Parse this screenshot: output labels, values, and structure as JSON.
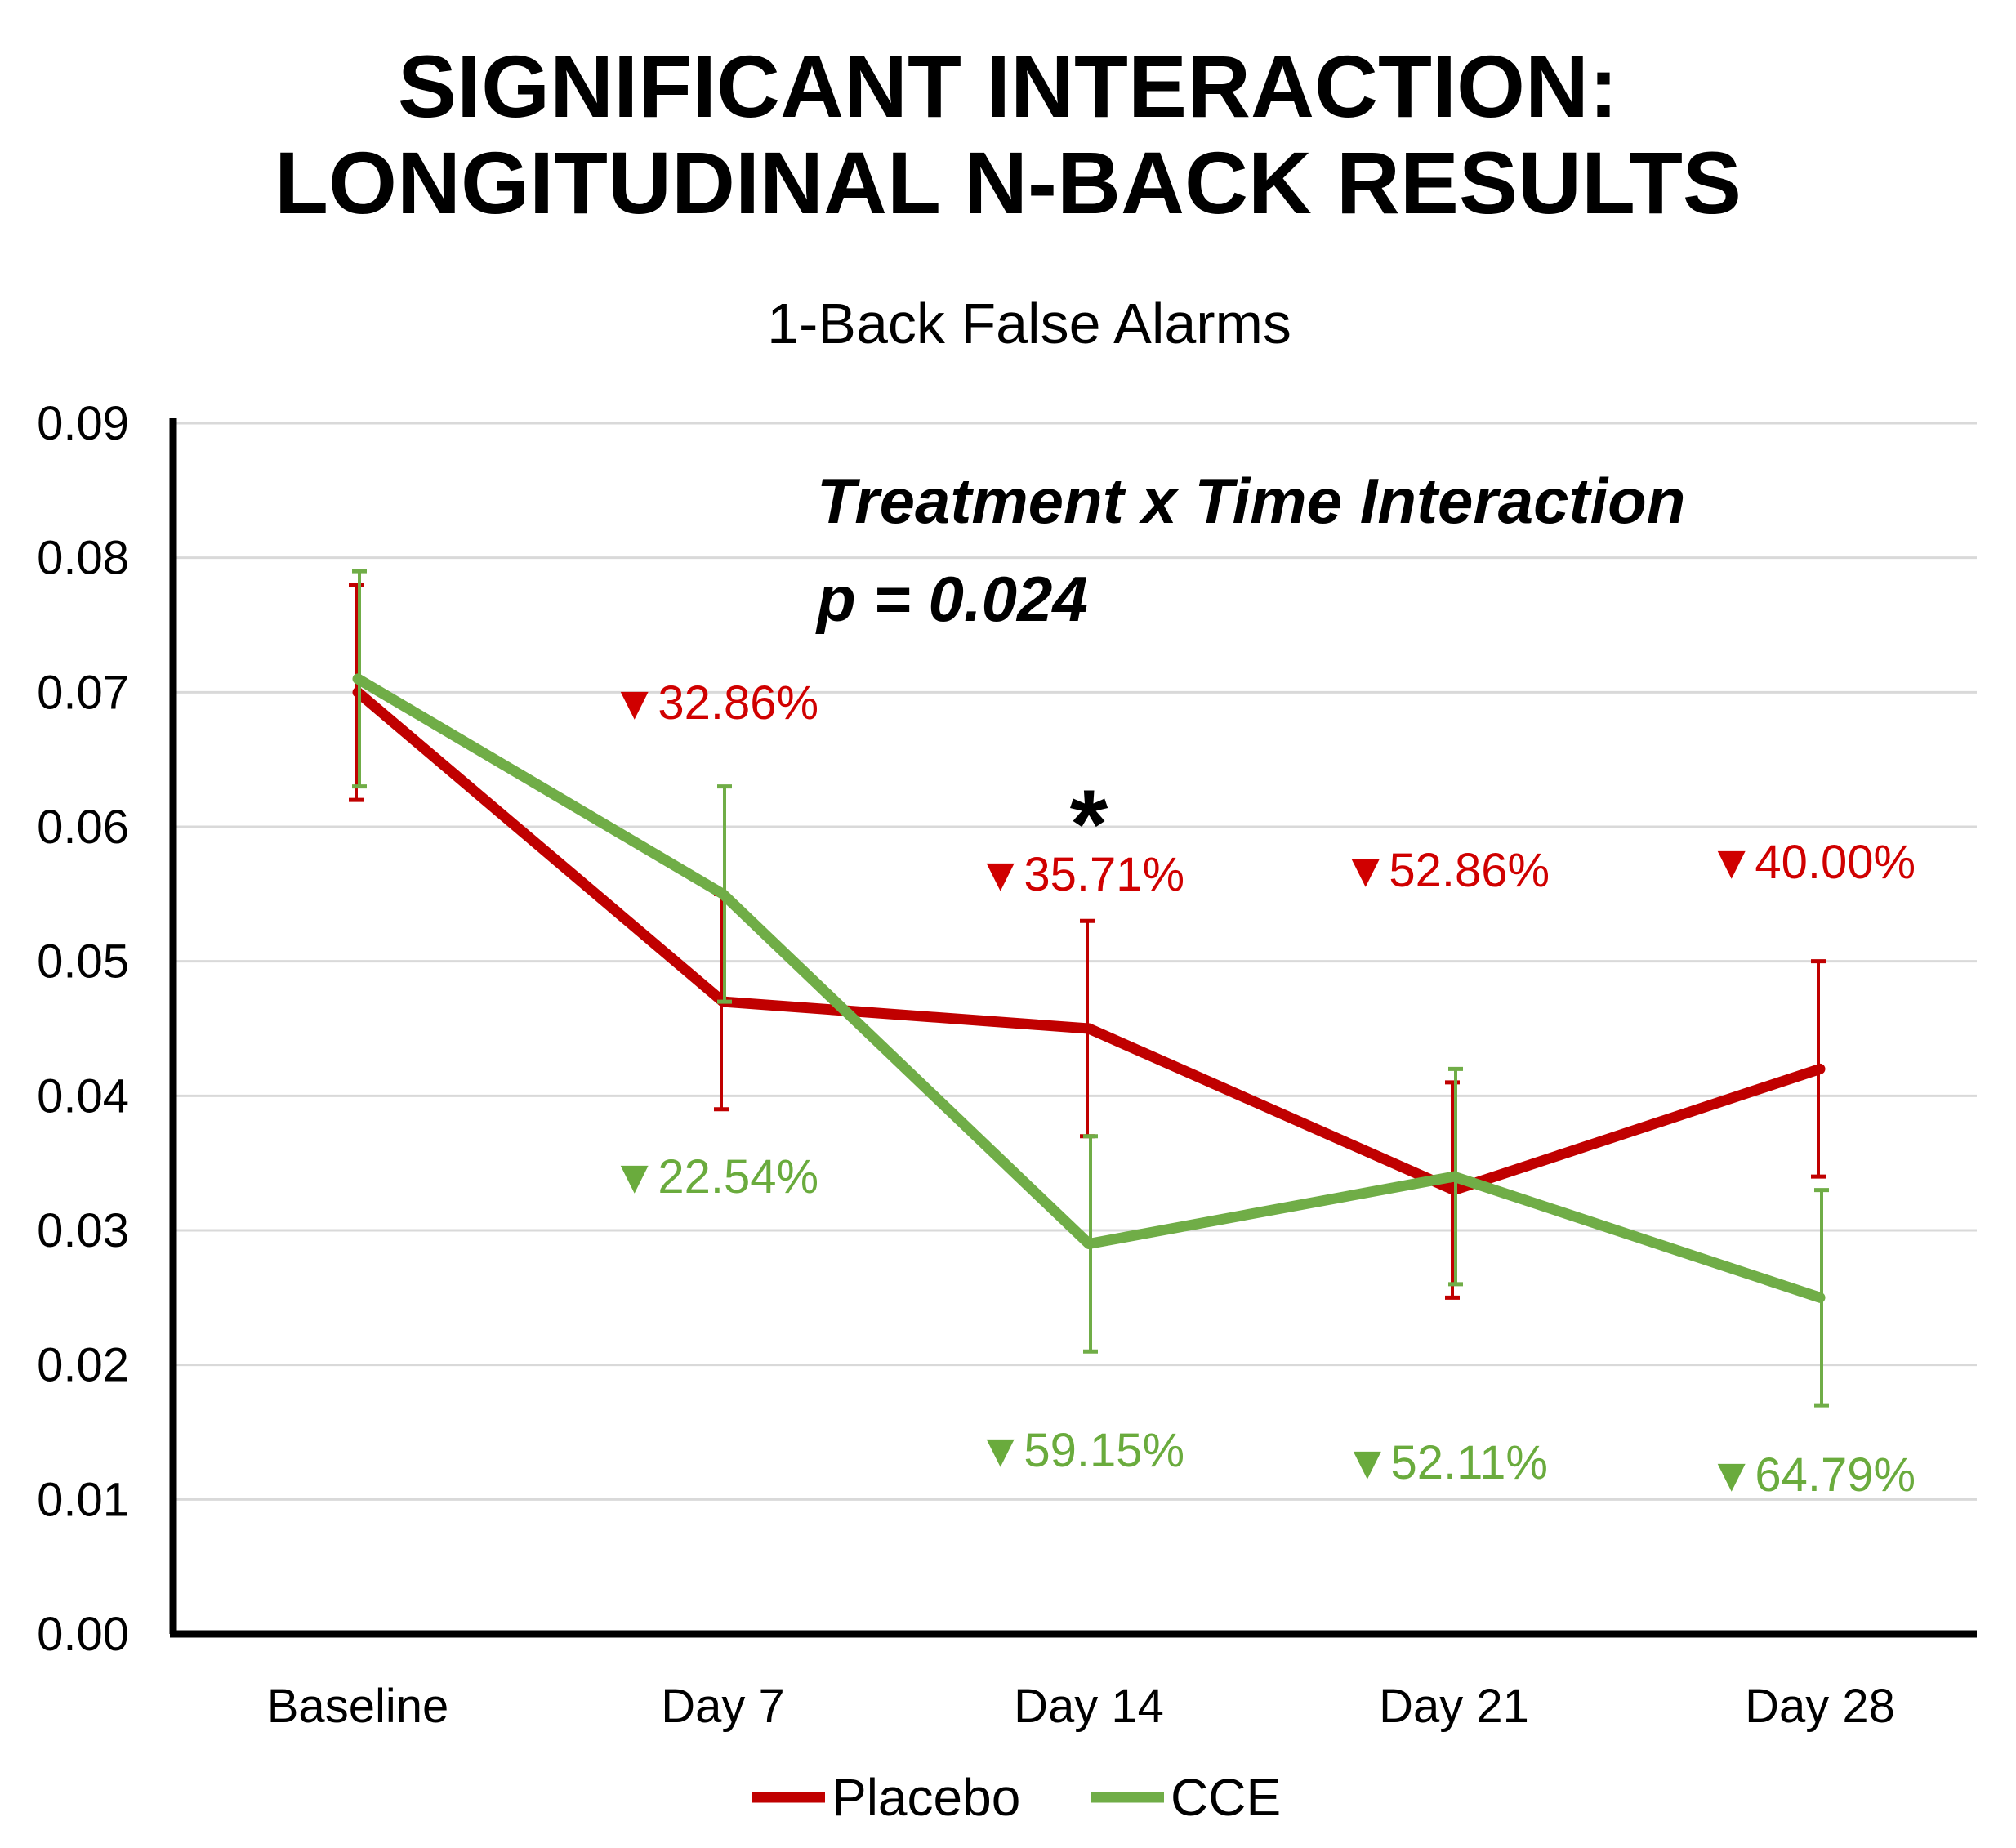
{
  "header": {
    "title_line1": "SIGNIFICANT INTERACTION:",
    "title_line2": "LONGITUDINAL N-BACK RESULTS"
  },
  "chart_data": {
    "type": "line",
    "title": "1-Back False Alarms",
    "xlabel": "",
    "ylabel": "",
    "categories": [
      "Baseline",
      "Day 7",
      "Day 14",
      "Day 21",
      "Day 28"
    ],
    "ylim": [
      0,
      0.09
    ],
    "yticks": [
      "0.00",
      "0.01",
      "0.02",
      "0.03",
      "0.04",
      "0.05",
      "0.06",
      "0.07",
      "0.08",
      "0.09"
    ],
    "grid": true,
    "legend_position": "bottom",
    "series": [
      {
        "name": "Placebo",
        "color": "#c00000",
        "values": [
          0.07,
          0.047,
          0.045,
          0.033,
          0.042
        ],
        "error_low": [
          0.062,
          0.039,
          0.037,
          0.025,
          0.034
        ],
        "error_high": [
          0.078,
          0.055,
          0.053,
          0.041,
          0.05
        ],
        "percent_labels": [
          "",
          "▼32.86%",
          "▼35.71%",
          "▼52.86%",
          "▼40.00%"
        ]
      },
      {
        "name": "CCE",
        "color": "#70ad47",
        "values": [
          0.071,
          0.055,
          0.029,
          0.034,
          0.025
        ],
        "error_low": [
          0.063,
          0.047,
          0.021,
          0.026,
          0.017
        ],
        "error_high": [
          0.079,
          0.063,
          0.037,
          0.042,
          0.033
        ],
        "percent_labels": [
          "",
          "▼22.54%",
          "▼59.15%",
          "▼52.11%",
          "▼64.79%"
        ]
      }
    ],
    "annotation": {
      "line1": "Treatment x Time Interaction",
      "line2": "p = 0.024"
    },
    "significance_marker": {
      "category": "Day 14",
      "symbol": "*"
    }
  }
}
